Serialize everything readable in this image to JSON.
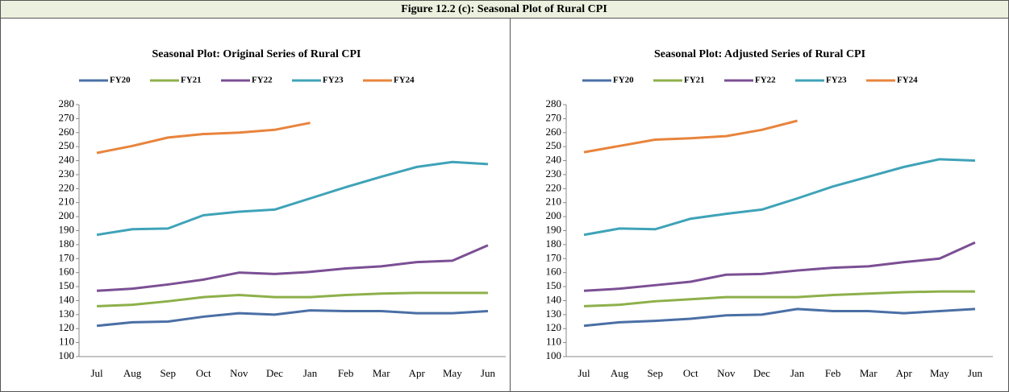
{
  "figure_title": "Figure 12.2 (c): Seasonal Plot of Rural CPI",
  "chart_data": [
    {
      "type": "line",
      "title": "Seasonal Plot: Original Series of  Rural CPI",
      "categories": [
        "Jul",
        "Aug",
        "Sep",
        "Oct",
        "Nov",
        "Dec",
        "Jan",
        "Feb",
        "Mar",
        "Apr",
        "May",
        "Jun"
      ],
      "ylim": [
        100,
        280
      ],
      "yticks": [
        100,
        110,
        120,
        130,
        140,
        150,
        160,
        170,
        180,
        190,
        200,
        210,
        220,
        230,
        240,
        250,
        260,
        270,
        280
      ],
      "grid": false,
      "legend": "top",
      "series": [
        {
          "name": "FY20",
          "color": "#4a6fa5",
          "values": [
            122,
            124.5,
            125,
            128.5,
            131,
            130,
            133,
            132.5,
            132.5,
            131,
            131,
            132.5
          ]
        },
        {
          "name": "FY21",
          "color": "#8db04a",
          "values": [
            136,
            137,
            139.5,
            142.5,
            144,
            142.5,
            142.5,
            144,
            145,
            145.5,
            145.5,
            145.5
          ]
        },
        {
          "name": "FY22",
          "color": "#7b4f94",
          "values": [
            147,
            148.5,
            151.5,
            155,
            160,
            159,
            160.5,
            163,
            164.5,
            167.5,
            168.5,
            179.5
          ]
        },
        {
          "name": "FY23",
          "color": "#3fa3b8",
          "values": [
            187,
            191,
            191.5,
            201,
            203.5,
            205,
            213,
            221,
            228.5,
            235.5,
            239,
            237.5
          ]
        },
        {
          "name": "FY24",
          "color": "#e8843d",
          "values": [
            245.5,
            250.5,
            256.5,
            259,
            260,
            262,
            267,
            null,
            null,
            null,
            null,
            null
          ]
        }
      ]
    },
    {
      "type": "line",
      "title": "Seasonal Plot: Adjusted Series of  Rural CPI",
      "categories": [
        "Jul",
        "Aug",
        "Sep",
        "Oct",
        "Nov",
        "Dec",
        "Jan",
        "Feb",
        "Mar",
        "Apr",
        "May",
        "Jun"
      ],
      "ylim": [
        100,
        280
      ],
      "yticks": [
        100,
        110,
        120,
        130,
        140,
        150,
        160,
        170,
        180,
        190,
        200,
        210,
        220,
        230,
        240,
        250,
        260,
        270,
        280
      ],
      "grid": false,
      "legend": "top",
      "series": [
        {
          "name": "FY20",
          "color": "#4a6fa5",
          "values": [
            122,
            124.5,
            125.5,
            127,
            129.5,
            130,
            134,
            132.5,
            132.5,
            131,
            132.5,
            134
          ]
        },
        {
          "name": "FY21",
          "color": "#8db04a",
          "values": [
            136,
            137,
            139.5,
            141,
            142.5,
            142.5,
            142.5,
            144,
            145,
            146,
            146.5,
            146.5
          ]
        },
        {
          "name": "FY22",
          "color": "#7b4f94",
          "values": [
            147,
            148.5,
            151,
            153.5,
            158.5,
            159,
            161.5,
            163.5,
            164.5,
            167.5,
            170,
            181.5
          ]
        },
        {
          "name": "FY23",
          "color": "#3fa3b8",
          "values": [
            187,
            191.5,
            191,
            198.5,
            202,
            205,
            213,
            221.5,
            228.5,
            235.5,
            241,
            240
          ]
        },
        {
          "name": "FY24",
          "color": "#e8843d",
          "values": [
            246,
            250.5,
            255,
            256,
            257.5,
            262,
            268.5,
            null,
            null,
            null,
            null,
            null
          ]
        }
      ]
    }
  ]
}
